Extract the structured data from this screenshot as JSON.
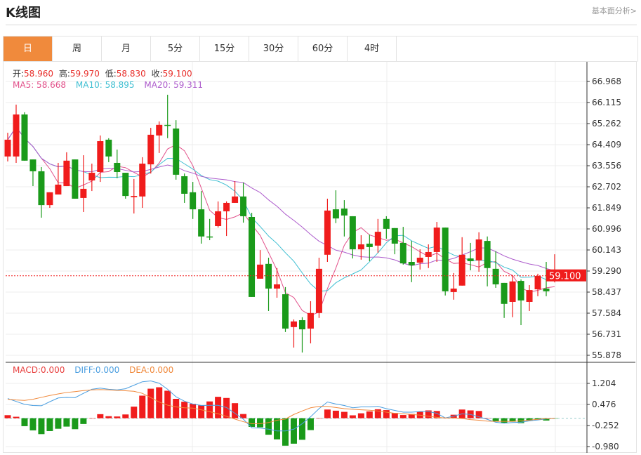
{
  "header": {
    "title": "K线图",
    "link": "基本面分析>"
  },
  "tabs": [
    {
      "label": "日",
      "active": true
    },
    {
      "label": "周"
    },
    {
      "label": "月"
    },
    {
      "label": "5分"
    },
    {
      "label": "15分"
    },
    {
      "label": "30分"
    },
    {
      "label": "60分"
    },
    {
      "label": "4时"
    }
  ],
  "ohlc_legend": {
    "open_label": "开:",
    "open": "58.960",
    "high_label": "高:",
    "high": "59.970",
    "low_label": "低:",
    "low": "58.830",
    "close_label": "收:",
    "close": "59.100"
  },
  "ma_legend": {
    "ma5": "MA5: 58.668",
    "ma10": "MA10: 58.895",
    "ma20": "MA20: 59.311"
  },
  "macd_legend": {
    "macd": "MACD:0.000",
    "diff": "DIFF:0.000",
    "dea": "DEA:0.000"
  },
  "colors": {
    "up": "#f01c1c",
    "down": "#1a9a1a",
    "ma5": "#e2508a",
    "ma10": "#3fbfd2",
    "ma20": "#ad5ccc",
    "diff": "#4a9ee0",
    "dea": "#f0883a",
    "tab_active": "#f08a3c"
  },
  "chart_data": [
    {
      "type": "candlestick",
      "y_ticks": [
        "66.968",
        "66.115",
        "65.262",
        "64.409",
        "63.556",
        "62.702",
        "61.849",
        "60.996",
        "60.143",
        "59.290",
        "58.437",
        "57.584",
        "56.731",
        "55.878"
      ],
      "ylim": [
        55.878,
        66.968
      ],
      "last_price_label": "59.100",
      "ma_periods": [
        5,
        10,
        20
      ],
      "candles": [
        [
          63.93,
          64.89,
          63.73,
          64.61
        ],
        [
          63.93,
          66.03,
          63.67,
          65.63
        ],
        [
          65.63,
          65.72,
          63.76,
          63.76
        ],
        [
          63.81,
          63.81,
          62.73,
          63.33
        ],
        [
          63.33,
          63.5,
          61.45,
          61.96
        ],
        [
          61.96,
          62.48,
          61.85,
          62.48
        ],
        [
          62.39,
          63.67,
          62.39,
          62.79
        ],
        [
          62.73,
          64.1,
          62.73,
          63.76
        ],
        [
          63.81,
          63.81,
          62.22,
          62.22
        ],
        [
          62.25,
          63.98,
          61.68,
          62.62
        ],
        [
          62.96,
          63.64,
          62.53,
          63.27
        ],
        [
          63.3,
          64.78,
          62.9,
          64.55
        ],
        [
          64.61,
          64.67,
          63.7,
          63.93
        ],
        [
          63.67,
          64.21,
          63.05,
          63.3
        ],
        [
          63.27,
          63.27,
          62.22,
          62.33
        ],
        [
          62.28,
          63.02,
          61.62,
          62.33
        ],
        [
          62.31,
          63.9,
          61.85,
          63.64
        ],
        [
          63.61,
          65.09,
          63.24,
          64.81
        ],
        [
          64.78,
          65.35,
          64.07,
          65.21
        ],
        [
          65.21,
          66.43,
          64.67,
          65.18
        ],
        [
          65.06,
          65.4,
          62.99,
          63.19
        ],
        [
          63.13,
          63.24,
          62.05,
          62.42
        ],
        [
          62.48,
          62.9,
          61.4,
          61.79
        ],
        [
          61.79,
          62.53,
          60.4,
          60.69
        ],
        [
          60.69,
          61.4,
          60.54,
          60.66
        ],
        [
          61.11,
          62.11,
          61.05,
          61.71
        ],
        [
          61.71,
          62.11,
          60.71,
          62.05
        ],
        [
          62.05,
          62.93,
          62.05,
          62.31
        ],
        [
          62.31,
          62.87,
          61.25,
          61.51
        ],
        [
          61.48,
          61.65,
          58.24,
          58.24
        ],
        [
          58.98,
          60.14,
          58.98,
          59.55
        ],
        [
          59.58,
          59.83,
          57.67,
          58.58
        ],
        [
          58.58,
          59.41,
          58.21,
          58.75
        ],
        [
          58.35,
          58.64,
          56.82,
          56.96
        ],
        [
          57.02,
          57.33,
          56.19,
          57.25
        ],
        [
          57.3,
          57.42,
          55.99,
          56.93
        ],
        [
          56.96,
          58.07,
          56.36,
          57.59
        ],
        [
          57.59,
          59.83,
          57.39,
          59.38
        ],
        [
          59.95,
          62.22,
          59.66,
          61.74
        ],
        [
          61.79,
          62.56,
          61.23,
          61.42
        ],
        [
          61.82,
          62.16,
          60.69,
          61.54
        ],
        [
          61.51,
          61.51,
          59.8,
          60.17
        ],
        [
          60.17,
          60.74,
          59.75,
          60.37
        ],
        [
          60.4,
          60.77,
          59.69,
          60.26
        ],
        [
          60.32,
          61.4,
          60.03,
          60.88
        ],
        [
          61.4,
          61.51,
          60.6,
          61.0
        ],
        [
          61.03,
          61.03,
          59.97,
          60.4
        ],
        [
          60.43,
          61.08,
          59.55,
          59.6
        ],
        [
          59.66,
          60.51,
          58.84,
          59.52
        ],
        [
          59.63,
          60.17,
          59.35,
          59.83
        ],
        [
          59.86,
          60.37,
          59.41,
          60.06
        ],
        [
          60.06,
          61.28,
          59.66,
          61.05
        ],
        [
          61.05,
          61.05,
          58.3,
          58.47
        ],
        [
          58.44,
          59.21,
          58.13,
          58.58
        ],
        [
          58.7,
          60.66,
          58.7,
          59.95
        ],
        [
          59.8,
          60.43,
          59.32,
          59.69
        ],
        [
          59.72,
          60.86,
          59.26,
          60.57
        ],
        [
          60.51,
          60.69,
          58.67,
          59.41
        ],
        [
          59.38,
          60.09,
          58.61,
          58.75
        ],
        [
          58.81,
          58.81,
          57.39,
          57.96
        ],
        [
          58.04,
          59.12,
          57.42,
          58.87
        ],
        [
          58.89,
          58.95,
          57.1,
          58.1
        ],
        [
          58.04,
          58.72,
          57.67,
          58.52
        ],
        [
          58.55,
          59.18,
          58.27,
          59.09
        ],
        [
          58.58,
          59.66,
          58.27,
          58.47
        ],
        [
          58.96,
          59.97,
          58.83,
          59.1
        ]
      ]
    },
    {
      "type": "bar+line",
      "y_ticks": [
        "1.204",
        "0.476",
        "-0.252",
        "-0.980"
      ],
      "ylim": [
        -0.98,
        1.204
      ],
      "macd": [
        0.105,
        0.05,
        -0.275,
        -0.42,
        -0.55,
        -0.445,
        -0.365,
        -0.29,
        -0.38,
        -0.2,
        0.0,
        0.14,
        0.07,
        0.06,
        0.13,
        0.4,
        0.78,
        1.02,
        1.07,
        0.95,
        0.67,
        0.57,
        0.5,
        0.445,
        0.58,
        0.74,
        0.7,
        0.52,
        0.145,
        -0.3,
        -0.315,
        -0.57,
        -0.73,
        -0.95,
        -0.88,
        -0.745,
        -0.41,
        0.0,
        0.3,
        0.26,
        0.22,
        0.1,
        0.17,
        0.235,
        0.31,
        0.28,
        0.18,
        0.11,
        0.145,
        0.225,
        0.27,
        0.25,
        0.02,
        0.12,
        0.3,
        0.27,
        0.25,
        0.01,
        -0.105,
        -0.17,
        -0.12,
        -0.17,
        -0.09,
        -0.05,
        -0.08,
        -0.01
      ],
      "diff": [
        0.68,
        0.58,
        0.48,
        0.44,
        0.43,
        0.57,
        0.7,
        0.72,
        0.71,
        0.86,
        1.0,
        1.04,
        1.0,
        0.98,
        1.02,
        1.14,
        1.26,
        1.29,
        1.21,
        1.0,
        0.74,
        0.59,
        0.49,
        0.44,
        0.445,
        0.445,
        0.37,
        0.17,
        -0.03,
        -0.33,
        -0.34,
        -0.38,
        -0.44,
        -0.44,
        -0.38,
        -0.19,
        0.05,
        0.33,
        0.56,
        0.49,
        0.44,
        0.36,
        0.39,
        0.39,
        0.41,
        0.33,
        0.27,
        0.21,
        0.21,
        0.23,
        0.23,
        0.17,
        0.01,
        0.07,
        0.15,
        0.13,
        0.05,
        -0.04,
        -0.14,
        -0.17,
        -0.15,
        -0.14,
        -0.09,
        -0.06,
        -0.025,
        0.0
      ],
      "dea": [
        0.655,
        0.63,
        0.615,
        0.655,
        0.72,
        0.785,
        0.84,
        0.89,
        0.92,
        0.955,
        0.98,
        0.99,
        0.98,
        0.96,
        0.95,
        0.93,
        0.86,
        0.71,
        0.56,
        0.45,
        0.39,
        0.36,
        0.35,
        0.29,
        0.225,
        0.155,
        0.065,
        -0.03,
        -0.12,
        -0.19,
        -0.19,
        -0.15,
        -0.07,
        -0.03,
        0.13,
        0.25,
        0.36,
        0.41,
        0.41,
        0.37,
        0.33,
        0.31,
        0.29,
        0.275,
        0.25,
        0.21,
        0.17,
        0.155,
        0.13,
        0.105,
        0.07,
        0.03,
        0.01,
        0.01,
        -0.01,
        -0.05,
        -0.07,
        -0.1,
        -0.11,
        -0.11,
        -0.11,
        -0.09,
        -0.065,
        -0.04,
        -0.015,
        0.0
      ]
    }
  ]
}
